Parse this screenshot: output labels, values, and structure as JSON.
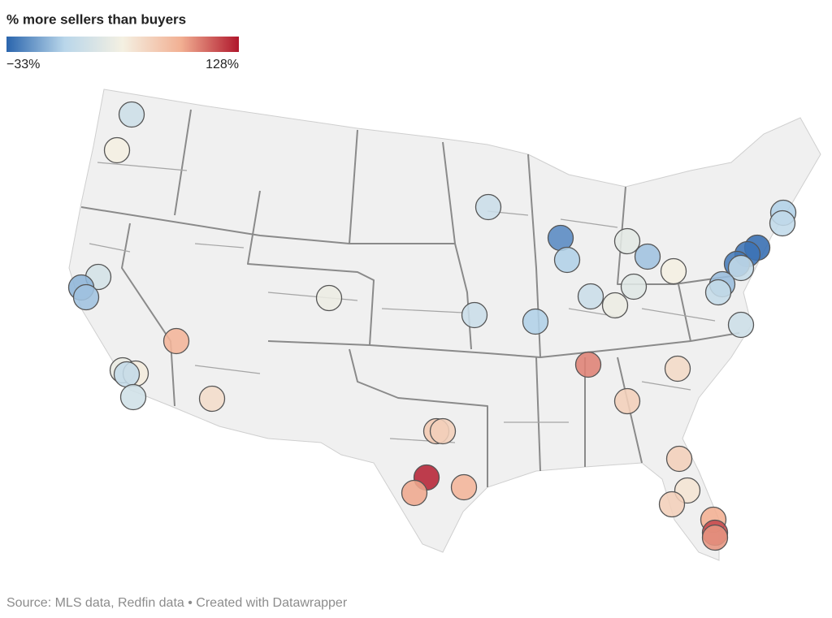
{
  "chart_data": {
    "type": "bubble_map",
    "title": "% more sellers than buyers",
    "scale": {
      "min": {
        "value": -33,
        "label": "−33%"
      },
      "max": {
        "value": 128,
        "label": "128%"
      },
      "colors": [
        "#2a65ad",
        "#b9d6ea",
        "#f4f0e2",
        "#f2b093",
        "#b0172c"
      ]
    },
    "values": [
      20,
      48,
      18,
      5,
      12,
      -20,
      35,
      5,
      0,
      48,
      -30,
      -28,
      -25,
      15,
      -2,
      15,
      25,
      -5,
      0,
      42,
      18,
      33,
      42,
      18,
      5,
      20,
      85,
      100,
      62,
      40,
      50,
      15,
      22,
      60,
      68,
      72,
      68,
      68,
      125,
      90,
      85,
      55,
      68,
      88,
      115,
      95
    ],
    "source": "Source: MLS data, Redfin data • Created with Datawrapper"
  }
}
